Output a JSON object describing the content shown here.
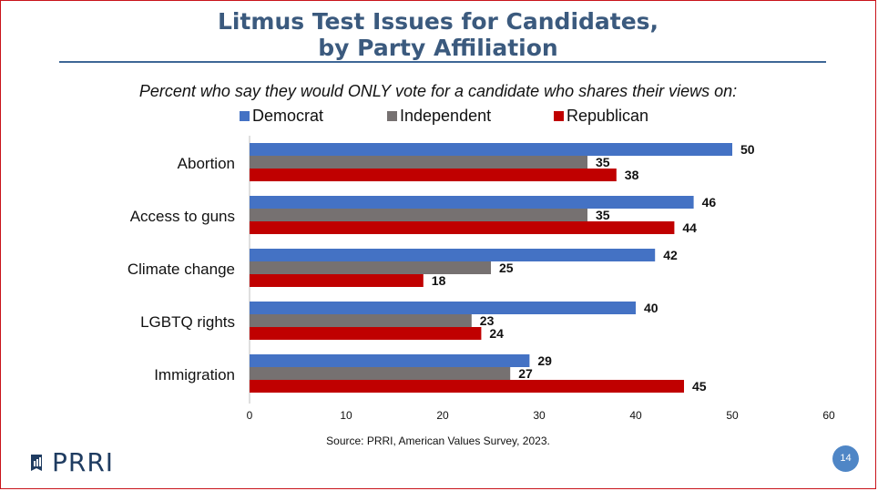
{
  "title_line1": "Litmus Test Issues for Candidates,",
  "title_line2": "by Party Affiliation",
  "subtitle": "Percent who say they would ONLY vote for a candidate who shares their views on:",
  "source": "Source: PRRI, American Values Survey, 2023.",
  "logo_text": "PRRI",
  "page_number": "14",
  "colors": {
    "Democrat": "#4472c4",
    "Independent": "#767171",
    "Republican": "#c00000",
    "title": "#3b5a7e"
  },
  "chart_data": {
    "type": "bar",
    "orientation": "horizontal",
    "categories": [
      "Abortion",
      "Access to guns",
      "Climate change",
      "LGBTQ rights",
      "Immigration"
    ],
    "series": [
      {
        "name": "Democrat",
        "values": [
          50,
          46,
          42,
          40,
          29
        ]
      },
      {
        "name": "Independent",
        "values": [
          35,
          35,
          25,
          23,
          27
        ]
      },
      {
        "name": "Republican",
        "values": [
          38,
          44,
          18,
          24,
          45
        ]
      }
    ],
    "xlim": [
      0,
      60
    ],
    "xticks": [
      0,
      10,
      20,
      30,
      40,
      50,
      60
    ],
    "legend_position": "top",
    "grid": false
  }
}
